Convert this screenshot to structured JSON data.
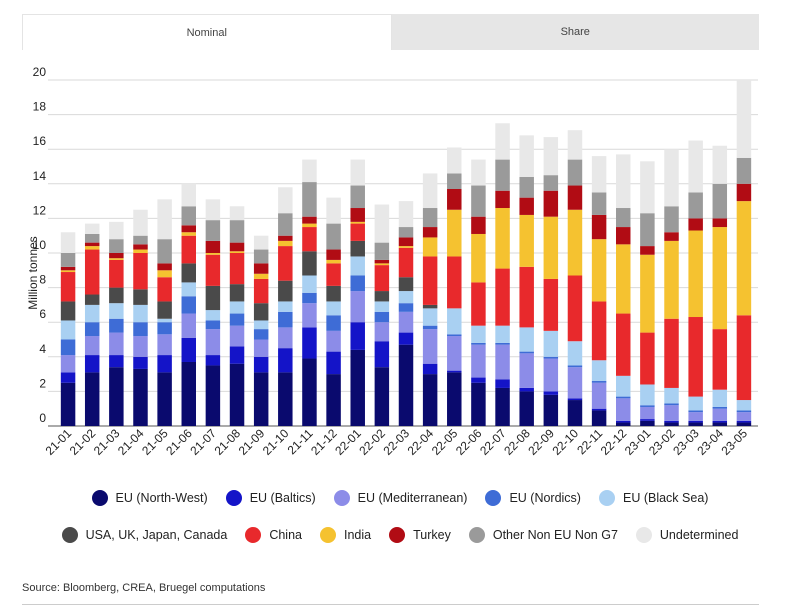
{
  "tabs": [
    {
      "label": "Nominal",
      "active": true
    },
    {
      "label": "Share",
      "active": false
    }
  ],
  "source": "Source: Bloomberg, CREA, Bruegel computations",
  "chart_data": {
    "type": "bar",
    "stacked": true,
    "title": "",
    "xlabel": "",
    "ylabel": "Million tonnes",
    "ylim": [
      0,
      20
    ],
    "yticks": [
      0,
      2,
      4,
      6,
      8,
      10,
      12,
      14,
      16,
      18,
      20
    ],
    "grid": true,
    "categories": [
      "21-01",
      "21-02",
      "21-03",
      "21-04",
      "21-05",
      "21-06",
      "21-07",
      "21-08",
      "21-09",
      "21-10",
      "21-11",
      "21-12",
      "22-01",
      "22-02",
      "22-03",
      "22-04",
      "22-05",
      "22-06",
      "22-07",
      "22-08",
      "22-09",
      "22-10",
      "22-11",
      "22-12",
      "23-01",
      "23-02",
      "23-03",
      "23-04",
      "23-05"
    ],
    "series": [
      {
        "name": "EU (North-West)",
        "color": "#0a0a6e",
        "values": [
          2.5,
          3.1,
          3.4,
          3.3,
          3.1,
          3.7,
          3.5,
          3.6,
          3.1,
          3.1,
          3.9,
          3.0,
          4.4,
          3.4,
          4.7,
          3.0,
          3.1,
          2.5,
          2.2,
          2.0,
          1.8,
          1.5,
          0.9,
          0.2,
          0.3,
          0.2,
          0.2,
          0.2,
          0.2
        ]
      },
      {
        "name": "EU (Baltics)",
        "color": "#1414c8",
        "values": [
          0.6,
          1.0,
          0.7,
          0.7,
          1.0,
          1.4,
          0.6,
          1.0,
          0.9,
          1.4,
          1.8,
          1.3,
          1.6,
          1.5,
          0.7,
          0.6,
          0.1,
          0.3,
          0.5,
          0.2,
          0.2,
          0.1,
          0.1,
          0.1,
          0.1,
          0.1,
          0.1,
          0.1,
          0.1
        ]
      },
      {
        "name": "EU (Mediterranean)",
        "color": "#8c8ce8",
        "values": [
          1.0,
          1.1,
          1.3,
          1.2,
          1.2,
          1.4,
          1.5,
          1.2,
          1.0,
          1.2,
          1.4,
          1.2,
          1.8,
          1.1,
          1.2,
          2.0,
          2.0,
          1.9,
          2.0,
          2.0,
          1.9,
          1.8,
          1.5,
          1.3,
          0.7,
          0.9,
          0.5,
          0.7,
          0.5
        ]
      },
      {
        "name": "EU (Nordics)",
        "color": "#3e6cd6",
        "values": [
          0.9,
          0.8,
          0.8,
          0.8,
          0.7,
          1.0,
          0.5,
          0.7,
          0.6,
          0.9,
          0.6,
          0.9,
          0.9,
          0.6,
          0.5,
          0.2,
          0.1,
          0.1,
          0.1,
          0.1,
          0.1,
          0.1,
          0.1,
          0.1,
          0.1,
          0.1,
          0.1,
          0.1,
          0.1
        ]
      },
      {
        "name": "EU (Black Sea)",
        "color": "#a9d0f2",
        "values": [
          1.1,
          1.0,
          0.9,
          1.0,
          0.2,
          0.8,
          0.6,
          0.7,
          0.5,
          0.6,
          1.0,
          0.8,
          1.1,
          0.6,
          0.7,
          1.0,
          1.5,
          1.0,
          1.0,
          1.4,
          1.5,
          1.4,
          1.2,
          1.2,
          1.2,
          0.9,
          0.8,
          1.0,
          0.6
        ]
      },
      {
        "name": "USA, UK, Japan, Canada",
        "color": "#4a4a4a",
        "values": [
          1.1,
          0.6,
          0.9,
          0.9,
          1.0,
          1.1,
          1.4,
          1.0,
          1.0,
          1.2,
          1.4,
          0.9,
          0.9,
          0.6,
          0.8,
          0.2,
          0.0,
          0.0,
          0.0,
          0.0,
          0.0,
          0.0,
          0.0,
          0.0,
          0.0,
          0.0,
          0.0,
          0.0,
          0.0
        ]
      },
      {
        "name": "China",
        "color": "#e8292c",
        "values": [
          1.7,
          2.6,
          1.6,
          2.1,
          1.4,
          1.6,
          1.8,
          1.8,
          1.4,
          2.0,
          1.4,
          1.3,
          1.0,
          1.5,
          1.7,
          2.8,
          3.0,
          2.5,
          3.3,
          3.5,
          3.0,
          3.8,
          3.4,
          3.6,
          3.0,
          4.0,
          4.6,
          3.5,
          4.9
        ]
      },
      {
        "name": "India",
        "color": "#f5c230",
        "values": [
          0.1,
          0.2,
          0.1,
          0.2,
          0.4,
          0.2,
          0.1,
          0.1,
          0.3,
          0.3,
          0.2,
          0.2,
          0.1,
          0.1,
          0.1,
          1.1,
          2.7,
          2.8,
          3.5,
          3.0,
          3.6,
          3.8,
          3.6,
          4.0,
          4.5,
          4.5,
          5.0,
          5.9,
          6.6
        ]
      },
      {
        "name": "Turkey",
        "color": "#b10c14",
        "values": [
          0.2,
          0.2,
          0.3,
          0.3,
          0.4,
          0.4,
          0.7,
          0.5,
          0.6,
          0.3,
          0.4,
          0.6,
          0.8,
          0.2,
          0.5,
          0.6,
          1.2,
          1.0,
          1.0,
          1.0,
          1.5,
          1.4,
          1.4,
          1.0,
          0.5,
          0.5,
          0.7,
          0.5,
          1.0
        ]
      },
      {
        "name": "Other Non EU Non G7",
        "color": "#9a9a9a",
        "values": [
          0.8,
          0.5,
          0.8,
          0.5,
          1.4,
          1.1,
          1.2,
          1.3,
          0.8,
          1.3,
          2.0,
          1.5,
          1.3,
          1.0,
          0.6,
          1.1,
          0.9,
          1.8,
          1.8,
          1.2,
          0.9,
          1.5,
          1.3,
          1.1,
          1.9,
          1.5,
          1.5,
          2.0,
          1.5
        ]
      },
      {
        "name": "Undetermined",
        "color": "#e8e8e8",
        "values": [
          1.2,
          0.6,
          1.0,
          1.5,
          2.3,
          1.3,
          1.2,
          0.8,
          0.8,
          1.5,
          1.3,
          1.5,
          1.5,
          2.2,
          1.5,
          2.0,
          1.5,
          1.5,
          2.1,
          2.4,
          2.2,
          1.7,
          2.1,
          3.1,
          3.0,
          3.3,
          3.0,
          2.2,
          4.5
        ]
      }
    ]
  }
}
